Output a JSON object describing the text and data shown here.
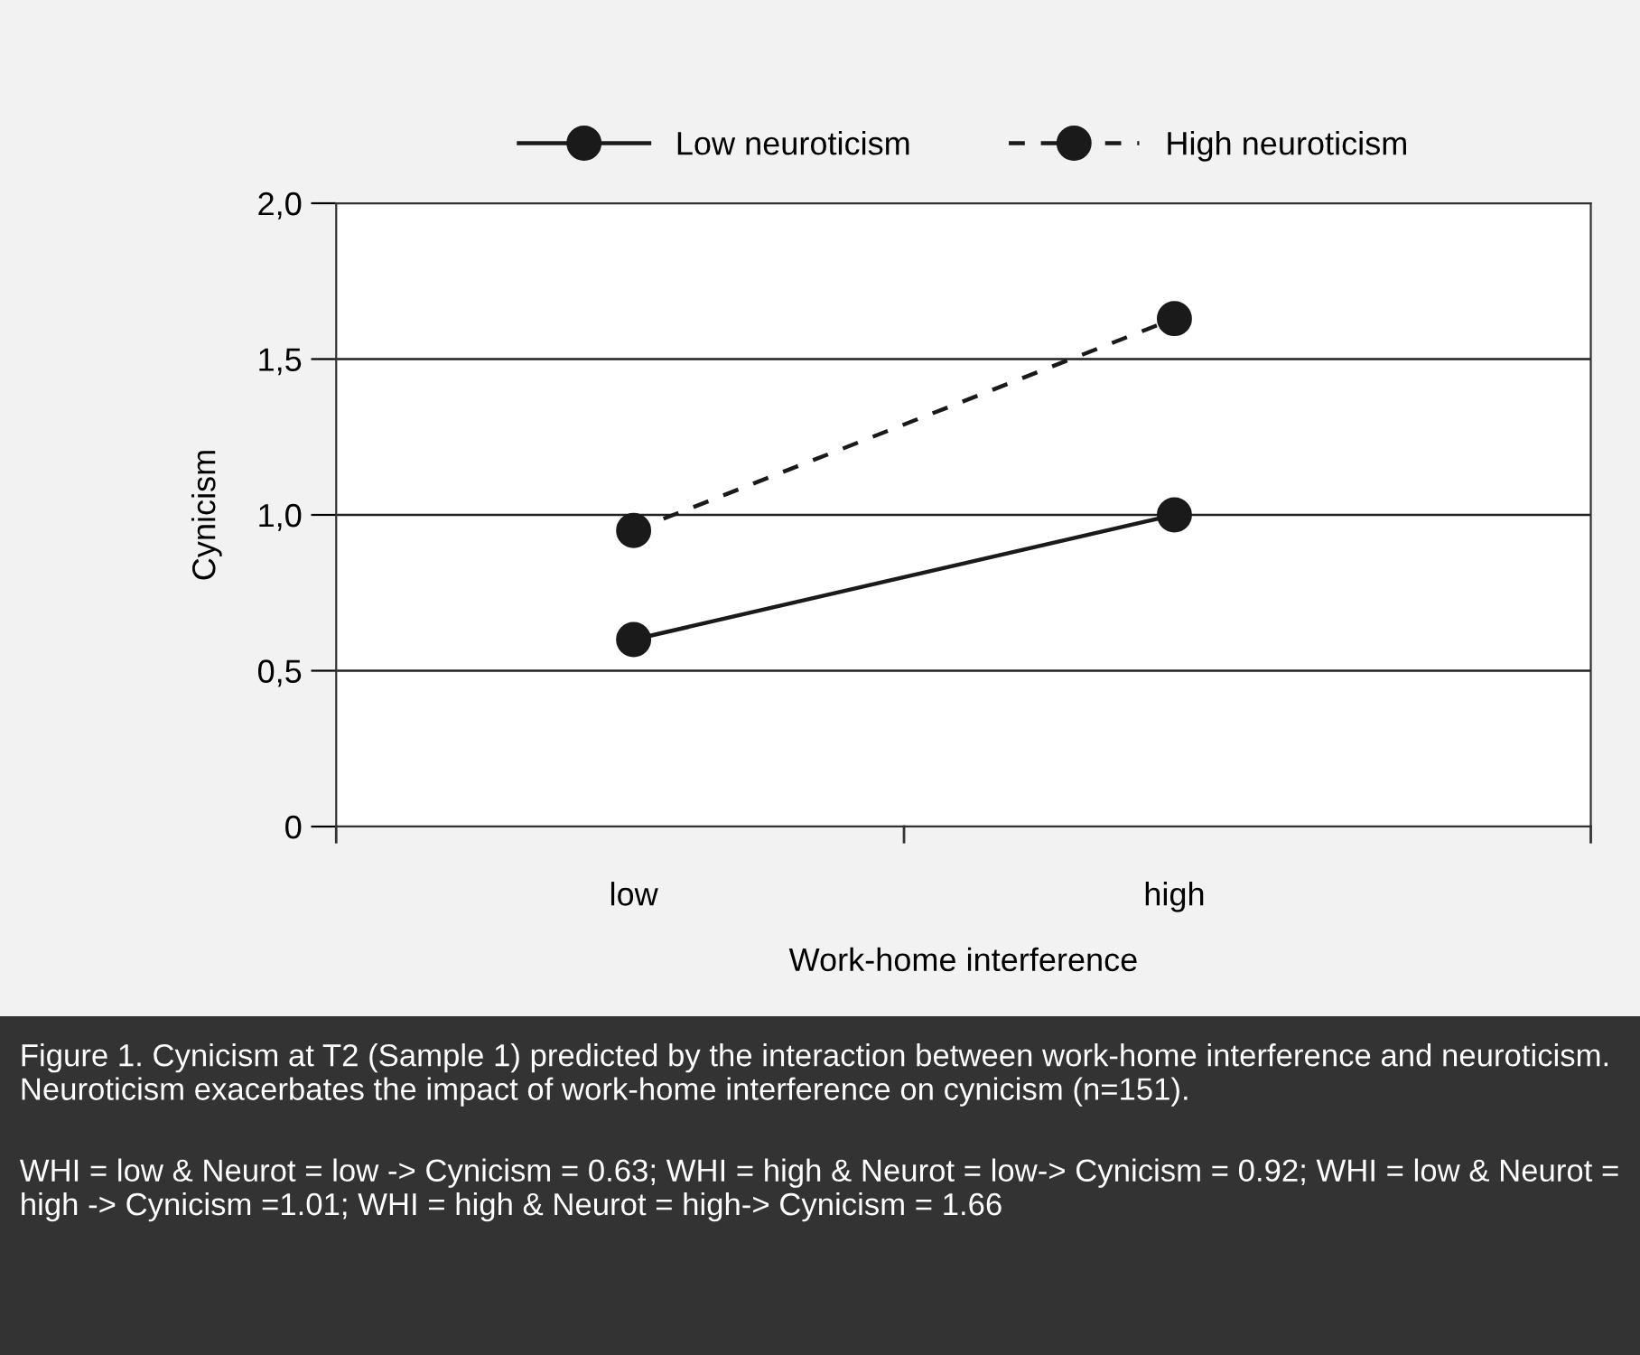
{
  "chart_data": {
    "type": "line",
    "categories": [
      "low",
      "high"
    ],
    "series": [
      {
        "name": "Low neuroticism",
        "color": "#1a1a1a",
        "values": [
          0.6,
          1.0
        ],
        "line_style": "solid"
      },
      {
        "name": "High neuroticism",
        "color": "#1a1a1a",
        "values": [
          0.95,
          1.63
        ],
        "line_style": "dashed"
      }
    ],
    "marker": "circle",
    "xlabel": "Work-home interference",
    "ylabel": "Cynicism",
    "ylim": [
      0,
      2.0
    ],
    "yticks": [
      {
        "value": 0,
        "label": "0"
      },
      {
        "value": 0.5,
        "label": "0,5"
      },
      {
        "value": 1.0,
        "label": "1,0"
      },
      {
        "value": 1.5,
        "label": "1,5"
      },
      {
        "value": 2.0,
        "label": "2,0"
      }
    ],
    "grid": "y",
    "legend": "top",
    "annotations": [
      "Figure 1. Cynicism at T2 (Sample 1) predicted by the interaction between work-home interference and neuroticism. Neuroticism exacerbates the impact of work-home interference on cynicism (n=151).",
      "WHI = low & Neurot = low -> Cynicism = 0.63; WHI = high & Neurot = low-> Cynicism = 0.92; WHI = low & Neurot = high -> Cynicism =1.01; WHI = high & Neurot = high-> Cynicism = 1.66"
    ]
  }
}
